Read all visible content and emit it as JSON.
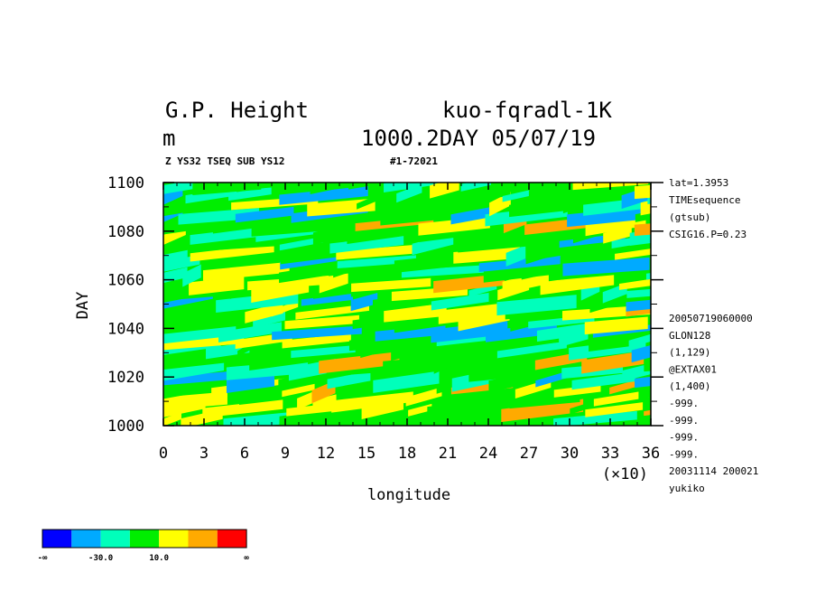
{
  "header": {
    "title_left": "G.P. Height",
    "title_right": "kuo-fqradl-1K",
    "units": "m",
    "subtitle_right": "1000.2DAY 05/07/19",
    "small_left": "Z YS32 TSEQ SUB YS12",
    "small_mid": "#1-72021"
  },
  "side_info": {
    "top": [
      "lat=1.3953",
      "TIMEsequence",
      "(gtsub)",
      "CSIG16.P=0.23"
    ],
    "bottom": [
      "20050719060000",
      "GLON128",
      "(1,129)",
      "@EXTAX01",
      "(1,400)",
      "-999.",
      "-999.",
      "-999.",
      "-999.",
      "20031114 200021",
      "yukiko"
    ]
  },
  "colorbar": {
    "colors": [
      "#0000ff",
      "#00aaff",
      "#00ffbb",
      "#00ee00",
      "#ffff00",
      "#ffaa00",
      "#ff0000"
    ],
    "labels": [
      "-∞",
      "-30.0",
      "10.0",
      "∞"
    ]
  },
  "chart_data": {
    "type": "heatmap",
    "title": "G.P. Height",
    "xlabel": "longitude",
    "x_multiplier": "(×10)",
    "ylabel": "DAY",
    "xlim": [
      0,
      36
    ],
    "ylim": [
      1000,
      1100
    ],
    "xticks": [
      "0",
      "3",
      "6",
      "9",
      "12",
      "15",
      "18",
      "21",
      "24",
      "27",
      "30",
      "33",
      "36"
    ],
    "yticks": [
      "1000",
      "1020",
      "1040",
      "1060",
      "1080",
      "1100"
    ],
    "band_rows": [
      {
        "day": 1000,
        "level": 3
      },
      {
        "day": 1004,
        "level": 4
      },
      {
        "day": 1008,
        "level": 3
      },
      {
        "day": 1012,
        "level": 4
      },
      {
        "day": 1016,
        "level": 2
      },
      {
        "day": 1020,
        "level": 3
      },
      {
        "day": 1024,
        "level": 4
      },
      {
        "day": 1028,
        "level": 2
      },
      {
        "day": 1032,
        "level": 3
      },
      {
        "day": 1036,
        "level": 1
      },
      {
        "day": 1040,
        "level": 3
      },
      {
        "day": 1044,
        "level": 4
      },
      {
        "day": 1048,
        "level": 2
      },
      {
        "day": 1052,
        "level": 3
      },
      {
        "day": 1056,
        "level": 4
      },
      {
        "day": 1060,
        "level": 3
      },
      {
        "day": 1064,
        "level": 2
      },
      {
        "day": 1068,
        "level": 3
      },
      {
        "day": 1072,
        "level": 2
      },
      {
        "day": 1076,
        "level": 3
      },
      {
        "day": 1080,
        "level": 4
      },
      {
        "day": 1084,
        "level": 2
      },
      {
        "day": 1088,
        "level": 3
      },
      {
        "day": 1092,
        "level": 2
      },
      {
        "day": 1096,
        "level": 3
      }
    ]
  }
}
